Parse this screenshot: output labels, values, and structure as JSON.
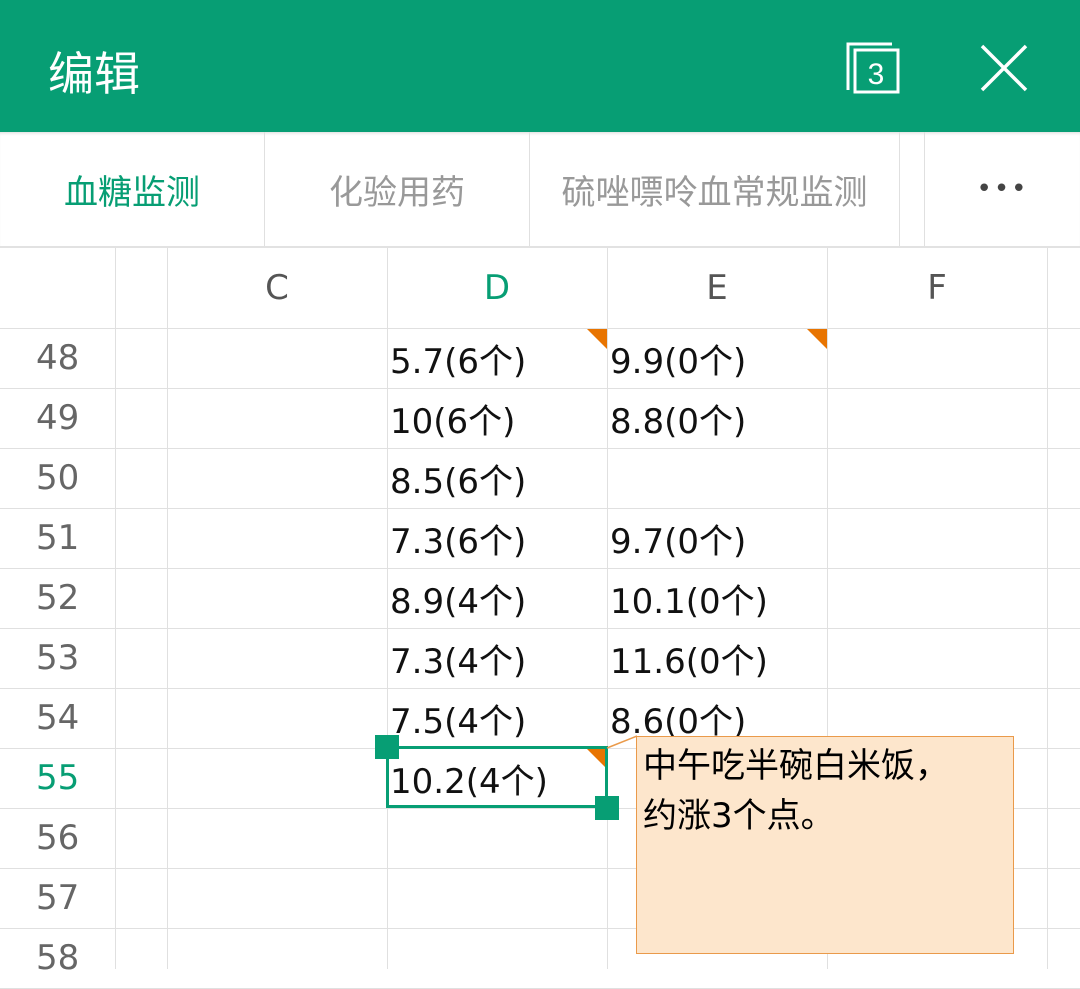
{
  "header": {
    "title": "编辑",
    "window_count": "3"
  },
  "tabs": [
    {
      "label": "血糖监测",
      "active": true
    },
    {
      "label": "化验用药",
      "active": false
    },
    {
      "label": "硫唑嘌呤血常规监测",
      "active": false
    }
  ],
  "more_label": "•••",
  "columns": [
    "C",
    "D",
    "E",
    "F"
  ],
  "selected_column": "D",
  "rows": [
    {
      "num": "48",
      "D": "5.7(6个)",
      "E": "9.9(0个)"
    },
    {
      "num": "49",
      "D": "10(6个)",
      "E": "8.8(0个)"
    },
    {
      "num": "50",
      "D": "8.5(6个)",
      "E": ""
    },
    {
      "num": "51",
      "D": "7.3(6个)",
      "E": "9.7(0个)"
    },
    {
      "num": "52",
      "D": "8.9(4个)",
      "E": "10.1(0个)"
    },
    {
      "num": "53",
      "D": "7.3(4个)",
      "E": "11.6(0个)"
    },
    {
      "num": "54",
      "D": "7.5(4个)",
      "E": "8.6(0个)"
    },
    {
      "num": "55",
      "D": "10.2(4个)",
      "E": ""
    },
    {
      "num": "56",
      "D": "",
      "E": ""
    },
    {
      "num": "57",
      "D": "",
      "E": ""
    },
    {
      "num": "58",
      "D": "",
      "E": ""
    }
  ],
  "selected_cell": "D55",
  "comment": {
    "line1": "中午吃半碗白米饭，",
    "line2": "约涨3个点。"
  },
  "colors": {
    "accent": "#079e74",
    "comment_marker": "#e87400",
    "comment_bg": "#fde6cc"
  }
}
